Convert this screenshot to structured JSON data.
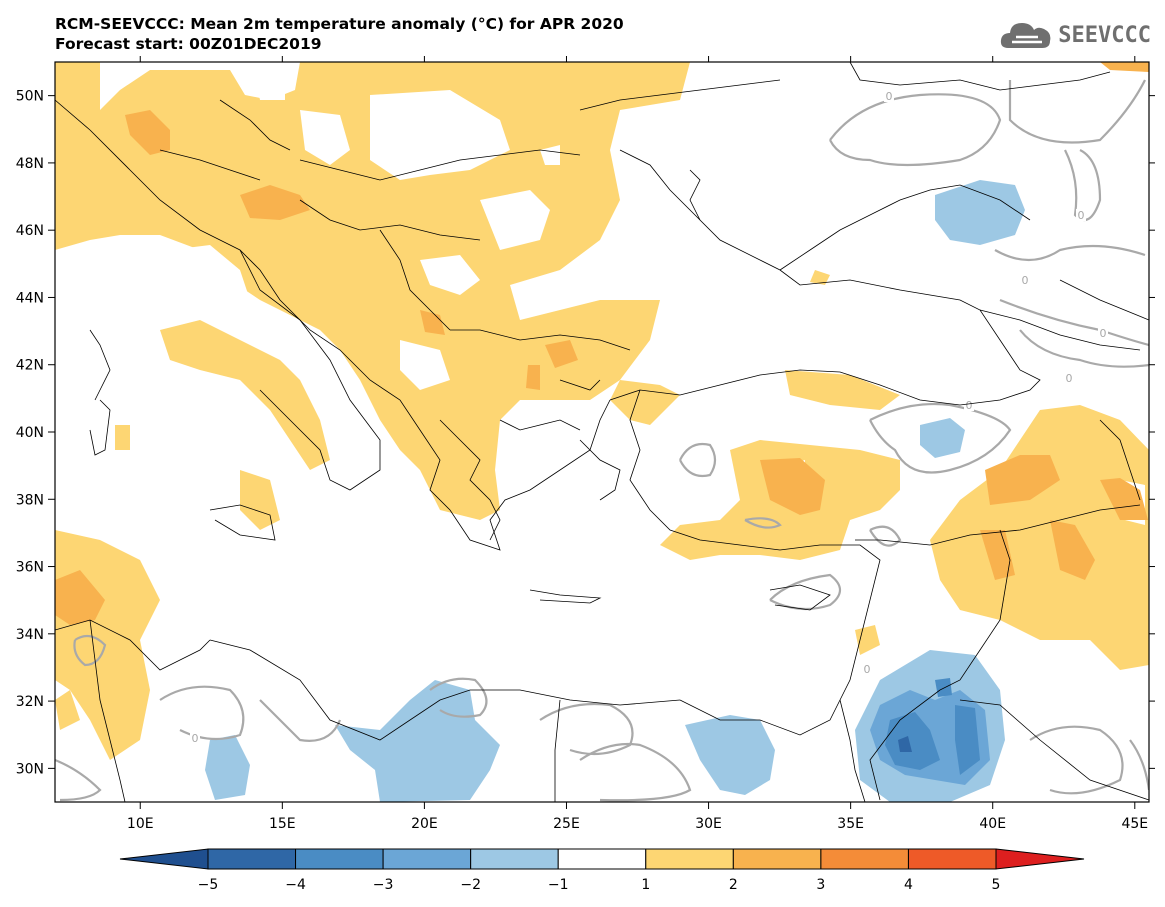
{
  "title": {
    "line1": "RCM-SEEVCCC: Mean 2m temperature anomaly (°C) for APR 2020",
    "line2": "Forecast start: 00Z01DEC2019"
  },
  "logo": {
    "text": "SEEVCCC",
    "icon": "cloud-icon"
  },
  "map": {
    "lon_range": [
      7,
      45.5
    ],
    "lat_range": [
      29,
      51
    ],
    "x_ticks": [
      {
        "value": 10,
        "label": "10E"
      },
      {
        "value": 15,
        "label": "15E"
      },
      {
        "value": 20,
        "label": "20E"
      },
      {
        "value": 25,
        "label": "25E"
      },
      {
        "value": 30,
        "label": "30E"
      },
      {
        "value": 35,
        "label": "35E"
      },
      {
        "value": 40,
        "label": "40E"
      },
      {
        "value": 45,
        "label": "45E"
      }
    ],
    "y_ticks": [
      {
        "value": 50,
        "label": "50N"
      },
      {
        "value": 48,
        "label": "48N"
      },
      {
        "value": 46,
        "label": "46N"
      },
      {
        "value": 44,
        "label": "44N"
      },
      {
        "value": 42,
        "label": "42N"
      },
      {
        "value": 40,
        "label": "40N"
      },
      {
        "value": 38,
        "label": "38N"
      },
      {
        "value": 36,
        "label": "36N"
      },
      {
        "value": 34,
        "label": "34N"
      },
      {
        "value": 32,
        "label": "32N"
      },
      {
        "value": 30,
        "label": "30N"
      }
    ],
    "contour_label": "0"
  },
  "colorbar": {
    "labels": [
      "−5",
      "−4",
      "−3",
      "−2",
      "−1",
      "1",
      "2",
      "3",
      "4",
      "5"
    ],
    "colors": [
      "#1f4f8f",
      "#2f67a6",
      "#4a8cc4",
      "#6ba6d6",
      "#9dc8e4",
      "#ffffff",
      "#fdd673",
      "#f8b24e",
      "#f48c38",
      "#ee5a28",
      "#dd1f1f"
    ]
  }
}
